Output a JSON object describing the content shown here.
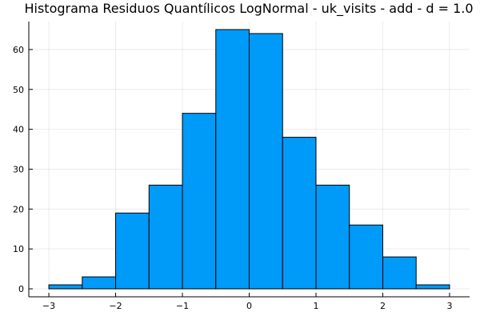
{
  "chart_data": {
    "type": "bar",
    "title": "Histograma Residuos Quantílicos LogNormal - uk_visits - add - d = 1.0",
    "xlabel": "",
    "ylabel": "",
    "bin_edges": [
      -3.0,
      -2.5,
      -2.0,
      -1.5,
      -1.0,
      -0.5,
      0.0,
      0.5,
      1.0,
      1.5,
      2.0,
      2.5,
      3.0
    ],
    "values": [
      1,
      3,
      19,
      26,
      44,
      65,
      64,
      38,
      26,
      16,
      8,
      1
    ],
    "xlim": [
      -3.3,
      3.3
    ],
    "ylim": [
      -2,
      67
    ],
    "xticks": [
      -3,
      -2,
      -1,
      0,
      1,
      2,
      3
    ],
    "xtick_labels": [
      "−3",
      "−2",
      "−1",
      "0",
      "1",
      "2",
      "3"
    ],
    "yticks": [
      0,
      10,
      20,
      30,
      40,
      50,
      60
    ],
    "ytick_labels": [
      "0",
      "10",
      "20",
      "30",
      "40",
      "50",
      "60"
    ],
    "grid": true,
    "legend": "none",
    "bar_color": "#009af9"
  }
}
